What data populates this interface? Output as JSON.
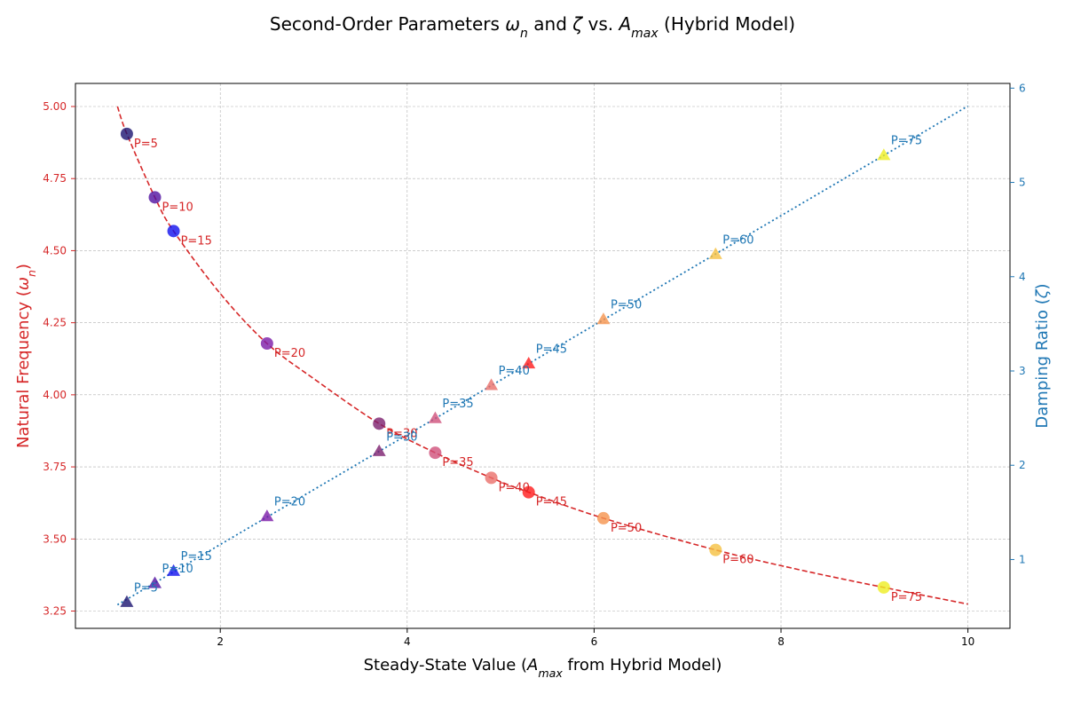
{
  "chart_data": {
    "type": "scatter",
    "title": "Second-Order Parameters ω_n and ζ vs. A_max (Hybrid Model)",
    "title_parts": [
      "Second-Order Parameters ",
      "ω",
      "n",
      " and ",
      "ζ",
      " vs. ",
      "A",
      "max",
      " (Hybrid Model)"
    ],
    "xlabel": "Steady-State Value (A_max from Hybrid Model)",
    "xlabel_parts": [
      "Steady-State Value (",
      "A",
      "max",
      " from Hybrid Model)"
    ],
    "ylabel_left": "Natural Frequency (ω_n)",
    "ylabel_left_parts": [
      "Natural Frequency (",
      "ω",
      "n",
      ")"
    ],
    "ylabel_right": "Damping Ratio (ζ)",
    "ylabel_right_parts": [
      "Damping Ratio (",
      "ζ",
      ")"
    ],
    "xlim": [
      0.45,
      10.45
    ],
    "ylim_left": [
      3.19,
      5.08
    ],
    "ylim_right": [
      0.27,
      6.05
    ],
    "x_ticks": [
      2,
      4,
      6,
      8,
      10
    ],
    "x_tick_labels": [
      "2",
      "4",
      "6",
      "8",
      "10"
    ],
    "y_left_ticks": [
      3.25,
      3.5,
      3.75,
      4.0,
      4.25,
      4.5,
      4.75,
      5.0
    ],
    "y_left_tick_labels": [
      "3.25",
      "3.50",
      "3.75",
      "4.00",
      "4.25",
      "4.50",
      "4.75",
      "5.00"
    ],
    "y_right_ticks": [
      1,
      2,
      3,
      4,
      5,
      6
    ],
    "y_right_tick_labels": [
      "1",
      "2",
      "3",
      "4",
      "5",
      "6"
    ],
    "grid": true,
    "colors": {
      "omega": "#d62728",
      "zeta": "#1f77b4"
    },
    "series": [
      {
        "axis": "left",
        "marker": "circle",
        "points": [
          {
            "label": "P=5",
            "x": 1.0,
            "y": 4.905,
            "color": "#1c1470"
          },
          {
            "label": "P=10",
            "x": 1.3,
            "y": 4.685,
            "color": "#5010a0"
          },
          {
            "label": "P=15",
            "x": 1.5,
            "y": 4.568,
            "color": "#1010ee"
          },
          {
            "label": "P=20",
            "x": 2.5,
            "y": 4.178,
            "color": "#7a1aa8"
          },
          {
            "label": "P=30",
            "x": 3.7,
            "y": 3.9,
            "color": "#7c1f6e"
          },
          {
            "label": "P=35",
            "x": 4.3,
            "y": 3.799,
            "color": "#d0507a"
          },
          {
            "label": "P=40",
            "x": 4.9,
            "y": 3.712,
            "color": "#ea6f6a"
          },
          {
            "label": "P=45",
            "x": 5.3,
            "y": 3.662,
            "color": "#ff1a1a"
          },
          {
            "label": "P=50",
            "x": 6.1,
            "y": 3.572,
            "color": "#f5934e"
          },
          {
            "label": "P=60",
            "x": 7.3,
            "y": 3.462,
            "color": "#f5c041"
          },
          {
            "label": "P=75",
            "x": 9.1,
            "y": 3.332,
            "color": "#eeee22"
          }
        ],
        "fit_curve": [
          [
            0.9,
            5.0
          ],
          [
            1.0,
            4.905
          ],
          [
            1.3,
            4.685
          ],
          [
            1.5,
            4.568
          ],
          [
            2.0,
            4.351
          ],
          [
            2.5,
            4.178
          ],
          [
            3.0,
            4.056
          ],
          [
            3.7,
            3.9
          ],
          [
            4.3,
            3.799
          ],
          [
            4.9,
            3.712
          ],
          [
            5.3,
            3.662
          ],
          [
            6.1,
            3.572
          ],
          [
            7.3,
            3.462
          ],
          [
            8.2,
            3.393
          ],
          [
            9.1,
            3.332
          ],
          [
            10.0,
            3.274
          ]
        ]
      },
      {
        "axis": "right",
        "marker": "triangle",
        "points": [
          {
            "label": "P=5",
            "x": 1.0,
            "y": 0.55,
            "color": "#1c1470"
          },
          {
            "label": "P=10",
            "x": 1.3,
            "y": 0.75,
            "color": "#5010a0"
          },
          {
            "label": "P=15",
            "x": 1.5,
            "y": 0.88,
            "color": "#1010ee"
          },
          {
            "label": "P=20",
            "x": 2.5,
            "y": 1.46,
            "color": "#7a1aa8"
          },
          {
            "label": "P=30",
            "x": 3.7,
            "y": 2.15,
            "color": "#7c1f6e"
          },
          {
            "label": "P=35",
            "x": 4.3,
            "y": 2.5,
            "color": "#d0507a"
          },
          {
            "label": "P=40",
            "x": 4.9,
            "y": 2.85,
            "color": "#ea6f6a"
          },
          {
            "label": "P=45",
            "x": 5.3,
            "y": 3.08,
            "color": "#ff1a1a"
          },
          {
            "label": "P=50",
            "x": 6.1,
            "y": 3.55,
            "color": "#f5934e"
          },
          {
            "label": "P=60",
            "x": 7.3,
            "y": 4.24,
            "color": "#f5c041"
          },
          {
            "label": "P=75",
            "x": 9.1,
            "y": 5.29,
            "color": "#eeee22"
          }
        ],
        "fit_curve": [
          [
            0.9,
            0.52
          ],
          [
            10.0,
            5.81
          ]
        ]
      }
    ]
  }
}
